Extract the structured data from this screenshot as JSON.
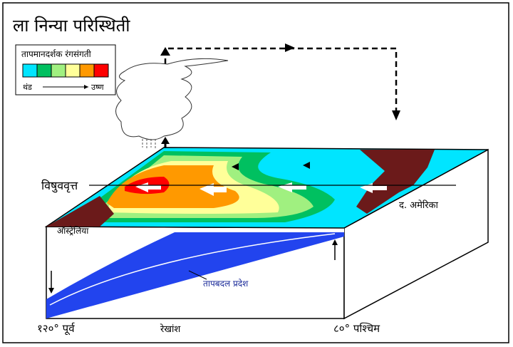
{
  "title": "ला निन्या परिस्थिती",
  "legend": {
    "title": "तापमानदर्शक रंगसंगती",
    "colors": [
      "#00e5ff",
      "#00c060",
      "#a0f080",
      "#ffff99",
      "#ff9900",
      "#ff0000"
    ],
    "cold": "थंड",
    "hot": "उष्ण"
  },
  "labels": {
    "equator": "विषुववृत्त",
    "south_america": "द. अमेरिका",
    "australia": "ऑस्ट्रेलिया",
    "thermocline": "तापबदल प्रदेश",
    "west_longitude": "१२०° पूर्व",
    "longitude": "रेखांश",
    "east_longitude": "८०° पश्चिम"
  }
}
